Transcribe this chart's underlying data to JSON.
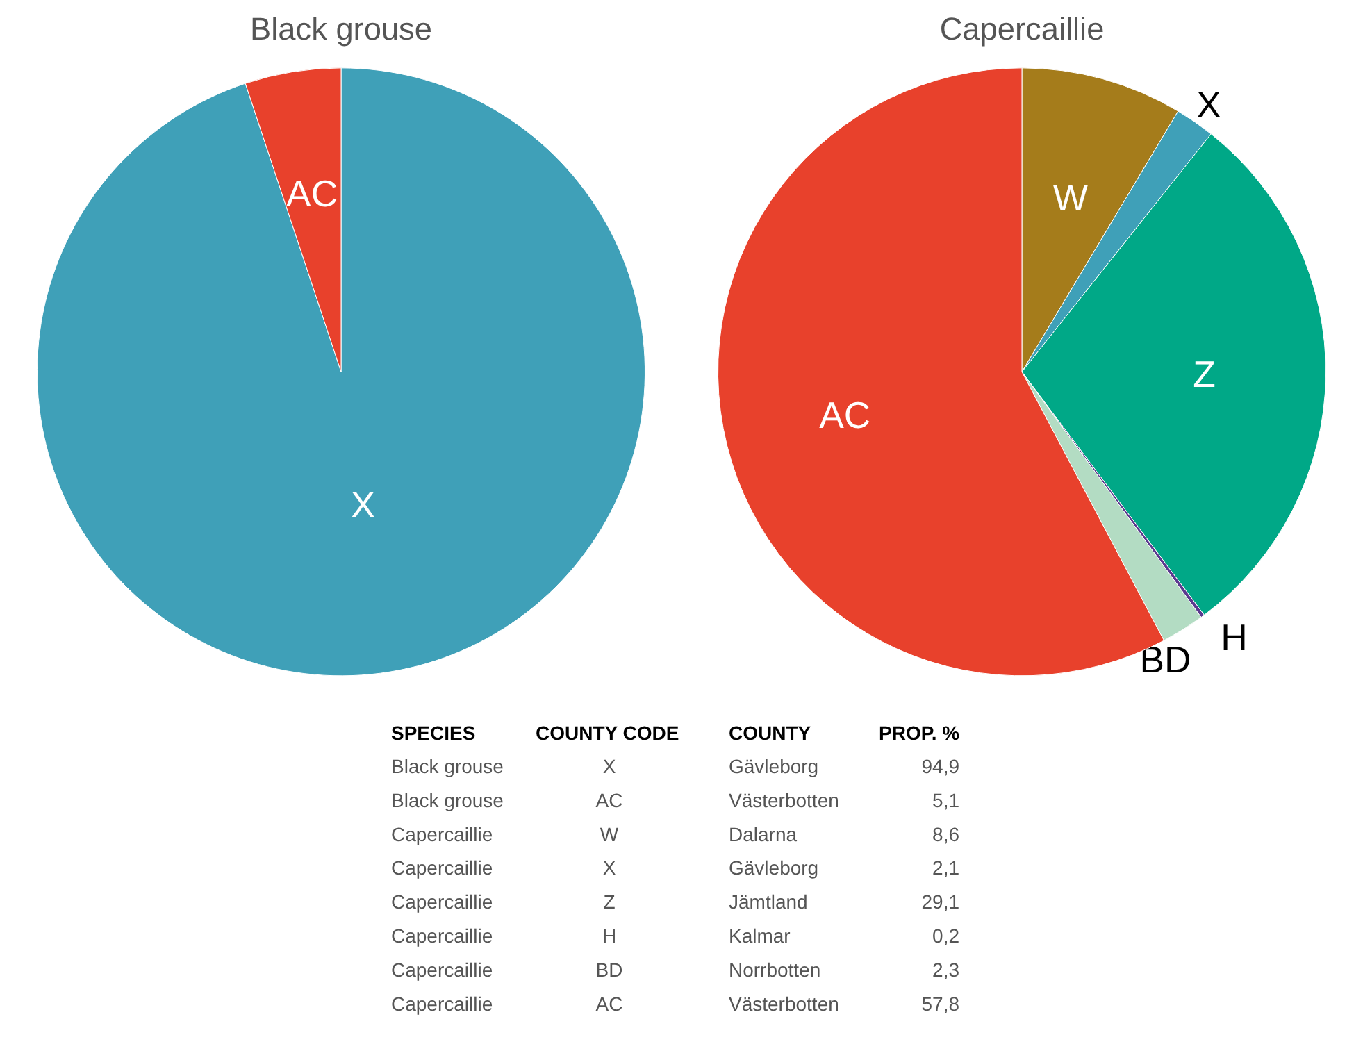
{
  "chart_data": [
    {
      "type": "pie",
      "title": "Black grouse",
      "categories": [
        "X",
        "AC"
      ],
      "values": [
        94.9,
        5.1
      ],
      "colors": [
        "#3fa0b8",
        "#e8412c"
      ]
    },
    {
      "type": "pie",
      "title": "Capercaillie",
      "categories": [
        "W",
        "X",
        "Z",
        "H",
        "BD",
        "AC"
      ],
      "values": [
        8.6,
        2.1,
        29.1,
        0.2,
        2.3,
        57.8
      ],
      "colors": [
        "#a57c1b",
        "#3fa0b8",
        "#00a887",
        "#5b3a8f",
        "#b3dcc3",
        "#e8412c"
      ]
    },
    {
      "type": "other",
      "categories": [
        "SPECIES",
        "COUNTY CODE",
        "COUNTY",
        "PROP. %"
      ],
      "annotations": [
        "Black grouse",
        "X",
        "Gävleborg",
        "94,9",
        "Black grouse",
        "AC",
        "Västerbotten",
        "5,1",
        "Capercaillie",
        "W",
        "Dalarna",
        "8,6",
        "Capercaillie",
        "X",
        "Gävleborg",
        "2,1",
        "Capercaillie",
        "Z",
        "Jämtland",
        "29,1",
        "Capercaillie",
        "H",
        "Kalmar",
        "0,2",
        "Capercaillie",
        "BD",
        "Norrbotten",
        "2,3",
        "Capercaillie",
        "AC",
        "Västerbotten",
        "57,8"
      ]
    }
  ]
}
